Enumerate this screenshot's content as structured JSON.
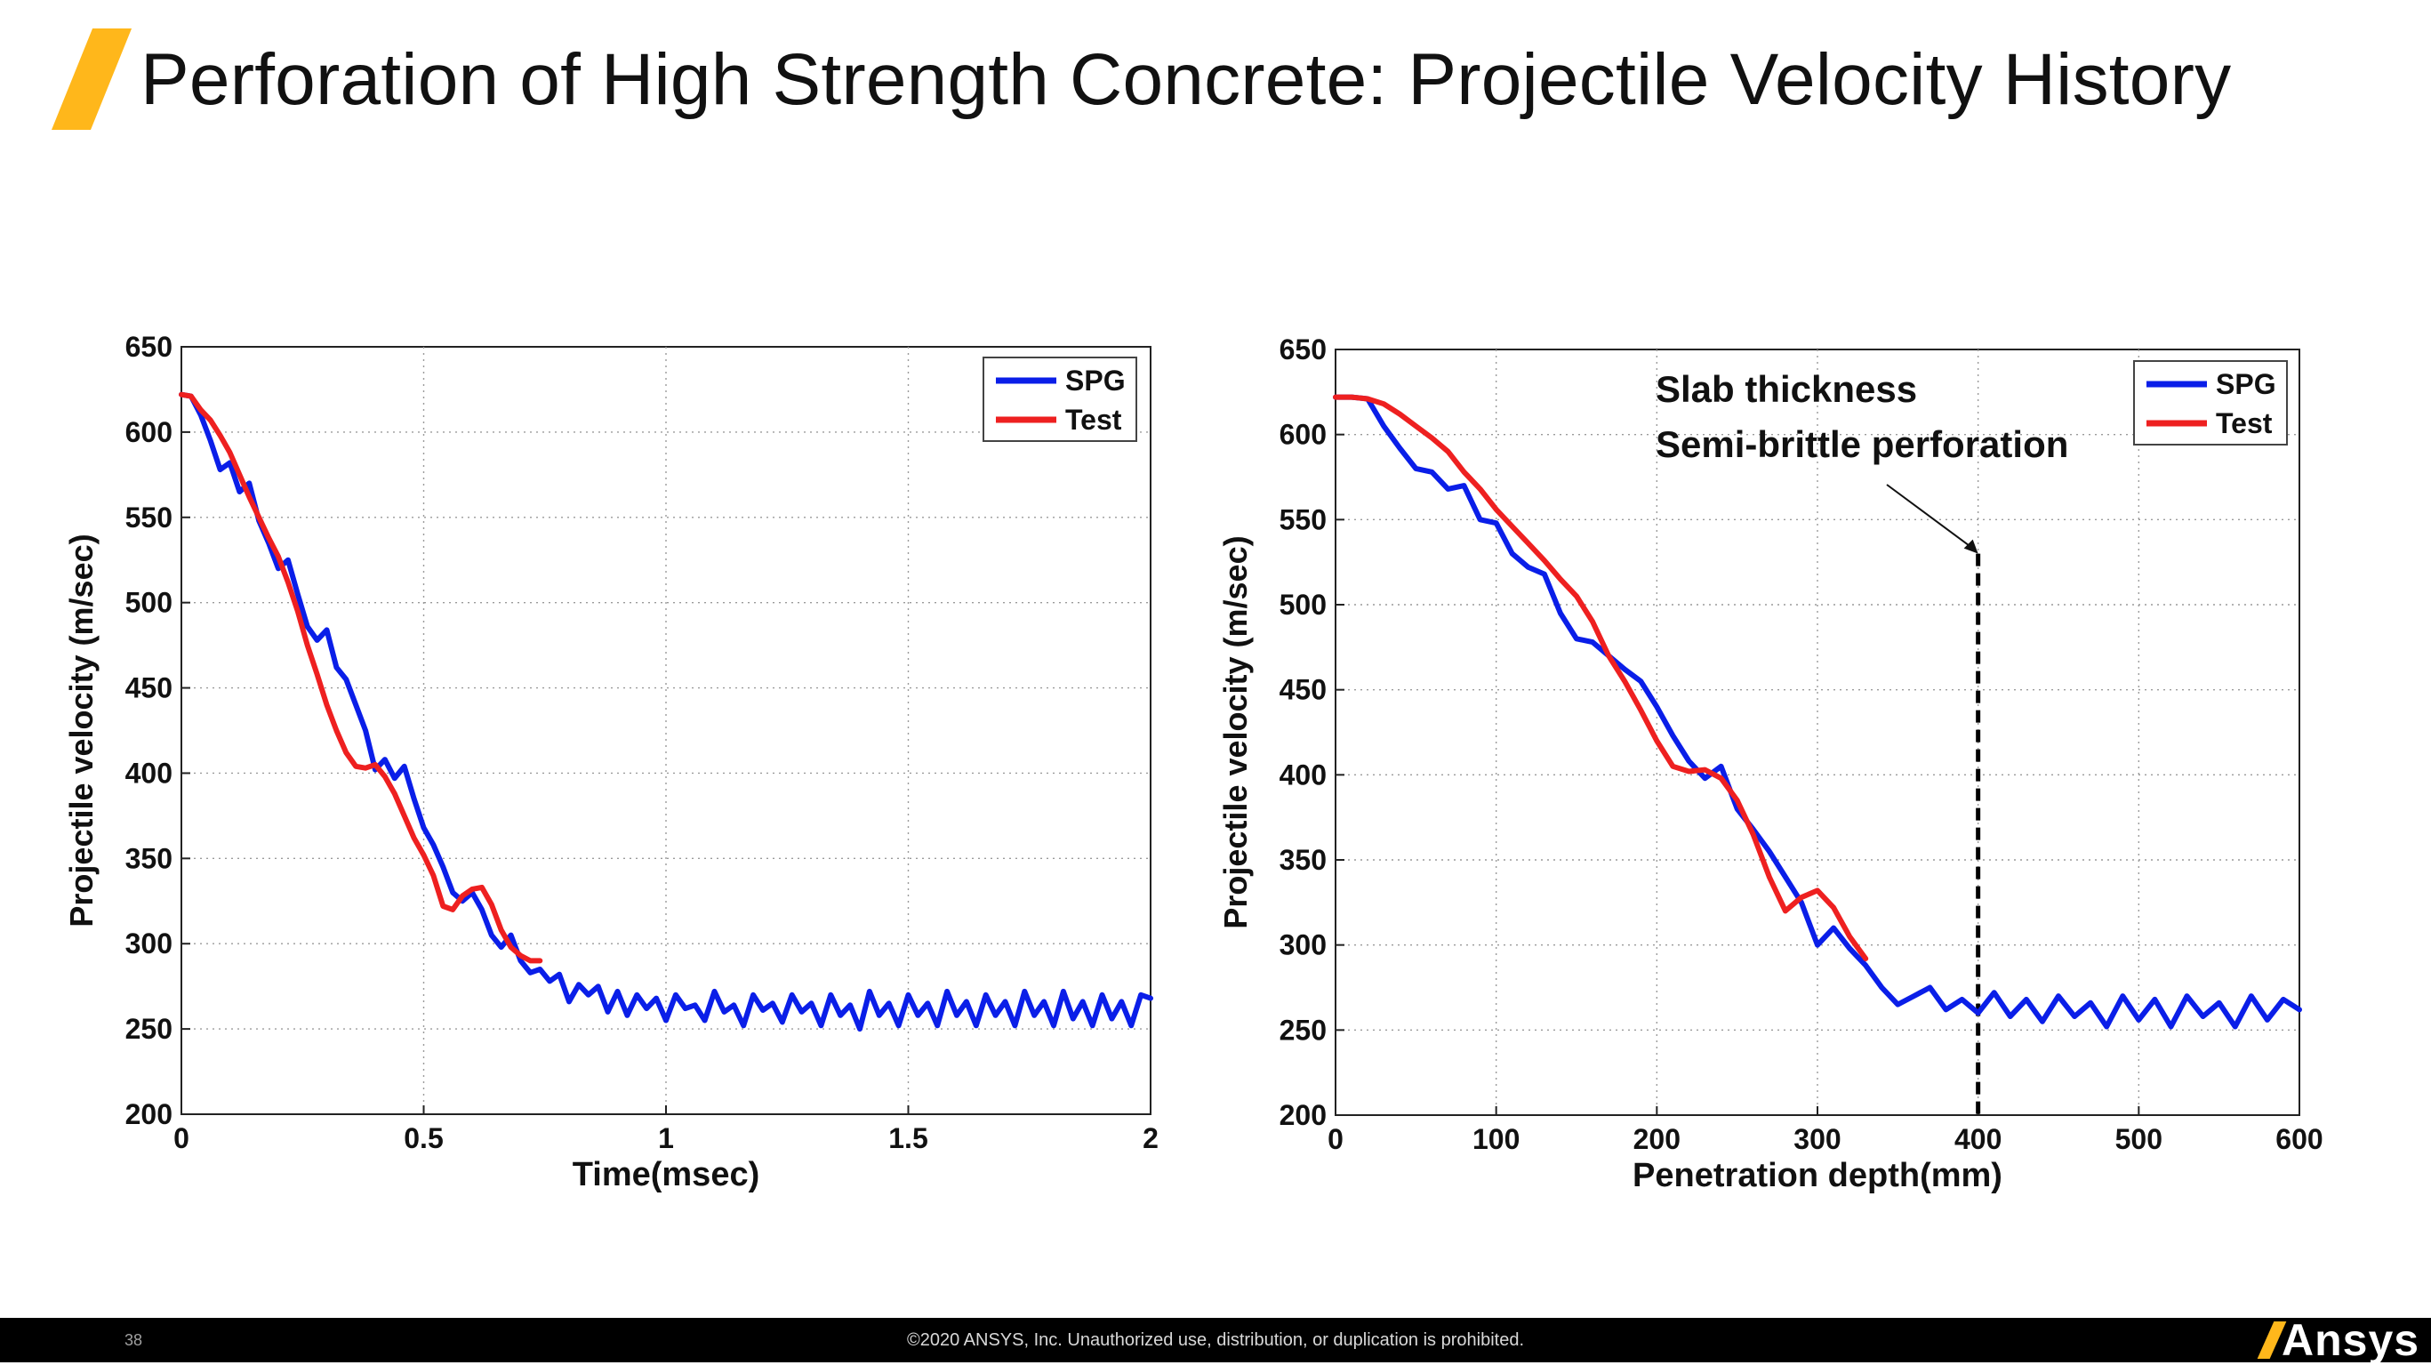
{
  "slide": {
    "title": "Perforation of High Strength Concrete: Projectile Velocity History",
    "page_number": "38",
    "copyright": "©2020 ANSYS, Inc. Unauthorized use, distribution, or duplication is prohibited.",
    "brand": "Ansys"
  },
  "colors": {
    "accent": "#ffb71b",
    "spg": "#0a1ee8",
    "test": "#ee2020"
  },
  "chart_data": [
    {
      "type": "line",
      "title": "",
      "xlabel": "Time(msec)",
      "ylabel": "Projectile velocity (m/sec)",
      "xlim": [
        0,
        2
      ],
      "ylim": [
        200,
        650
      ],
      "xticks": [
        "0",
        "0.5",
        "1",
        "1.5",
        "2"
      ],
      "yticks": [
        "200",
        "250",
        "300",
        "350",
        "400",
        "450",
        "500",
        "550",
        "600",
        "650"
      ],
      "grid": true,
      "legend_position": "top-right",
      "series": [
        {
          "name": "SPG",
          "x": [
            0,
            0.02,
            0.04,
            0.06,
            0.08,
            0.1,
            0.12,
            0.14,
            0.16,
            0.18,
            0.2,
            0.22,
            0.24,
            0.26,
            0.28,
            0.3,
            0.32,
            0.34,
            0.36,
            0.38,
            0.4,
            0.42,
            0.44,
            0.46,
            0.48,
            0.5,
            0.52,
            0.54,
            0.56,
            0.58,
            0.6,
            0.62,
            0.64,
            0.66,
            0.68,
            0.7,
            0.72,
            0.74,
            0.76,
            0.78,
            0.8,
            0.82,
            0.84,
            0.86,
            0.88,
            0.9,
            0.92,
            0.94,
            0.96,
            0.98,
            1.0,
            1.02,
            1.04,
            1.06,
            1.08,
            1.1,
            1.12,
            1.14,
            1.16,
            1.18,
            1.2,
            1.22,
            1.24,
            1.26,
            1.28,
            1.3,
            1.32,
            1.34,
            1.36,
            1.38,
            1.4,
            1.42,
            1.44,
            1.46,
            1.48,
            1.5,
            1.52,
            1.54,
            1.56,
            1.58,
            1.6,
            1.62,
            1.64,
            1.66,
            1.68,
            1.7,
            1.72,
            1.74,
            1.76,
            1.78,
            1.8,
            1.82,
            1.84,
            1.86,
            1.88,
            1.9,
            1.92,
            1.94,
            1.96,
            1.98,
            2.0
          ],
          "y": [
            622,
            621,
            610,
            595,
            578,
            582,
            565,
            570,
            548,
            535,
            520,
            525,
            505,
            486,
            478,
            484,
            462,
            455,
            440,
            425,
            402,
            408,
            397,
            404,
            385,
            368,
            358,
            345,
            330,
            325,
            330,
            320,
            305,
            298,
            305,
            290,
            283,
            285,
            278,
            282,
            266,
            276,
            270,
            275,
            260,
            272,
            258,
            270,
            262,
            268,
            255,
            270,
            262,
            264,
            255,
            272,
            260,
            264,
            252,
            270,
            261,
            265,
            254,
            270,
            260,
            265,
            252,
            270,
            258,
            264,
            250,
            272,
            258,
            265,
            252,
            270,
            258,
            265,
            252,
            272,
            258,
            266,
            252,
            270,
            258,
            266,
            252,
            272,
            258,
            266,
            252,
            272,
            256,
            266,
            252,
            270,
            256,
            266,
            252,
            270,
            268
          ]
        },
        {
          "name": "Test",
          "x": [
            0,
            0.02,
            0.04,
            0.06,
            0.08,
            0.1,
            0.12,
            0.14,
            0.16,
            0.18,
            0.2,
            0.22,
            0.24,
            0.26,
            0.28,
            0.3,
            0.32,
            0.34,
            0.36,
            0.38,
            0.4,
            0.42,
            0.44,
            0.46,
            0.48,
            0.5,
            0.52,
            0.54,
            0.56,
            0.58,
            0.6,
            0.62,
            0.64,
            0.66,
            0.68,
            0.7,
            0.72,
            0.74
          ],
          "y": [
            622,
            621,
            613,
            607,
            598,
            588,
            575,
            562,
            550,
            538,
            527,
            512,
            495,
            475,
            458,
            440,
            425,
            412,
            404,
            403,
            405,
            398,
            388,
            375,
            362,
            352,
            340,
            322,
            320,
            328,
            332,
            333,
            323,
            308,
            298,
            293,
            290,
            290
          ]
        }
      ]
    },
    {
      "type": "line",
      "title": "",
      "xlabel": "Penetration depth(mm)",
      "ylabel": "Projectile velocity (m/sec)",
      "xlim": [
        0,
        600
      ],
      "ylim": [
        200,
        650
      ],
      "xticks": [
        "0",
        "100",
        "200",
        "300",
        "400",
        "500",
        "600"
      ],
      "yticks": [
        "200",
        "250",
        "300",
        "350",
        "400",
        "450",
        "500",
        "550",
        "600",
        "650"
      ],
      "grid": true,
      "legend_position": "top-right",
      "annotation": {
        "lines": [
          "Slab thickness",
          "Semi-brittle perforation"
        ],
        "x": 400,
        "ymax": 530
      },
      "series": [
        {
          "name": "SPG",
          "x": [
            0,
            10,
            20,
            30,
            40,
            50,
            60,
            70,
            80,
            90,
            100,
            110,
            120,
            130,
            140,
            150,
            160,
            170,
            180,
            190,
            200,
            210,
            220,
            230,
            240,
            250,
            260,
            270,
            280,
            290,
            300,
            310,
            320,
            330,
            340,
            350,
            360,
            370,
            380,
            390,
            400,
            410,
            420,
            430,
            440,
            450,
            460,
            470,
            480,
            490,
            500,
            510,
            520,
            530,
            540,
            550,
            560,
            570,
            580,
            590,
            600
          ],
          "y": [
            622,
            622,
            621,
            605,
            592,
            580,
            578,
            568,
            570,
            550,
            548,
            530,
            522,
            518,
            495,
            480,
            478,
            470,
            462,
            455,
            440,
            423,
            408,
            398,
            405,
            380,
            368,
            355,
            340,
            325,
            300,
            310,
            298,
            288,
            275,
            265,
            270,
            275,
            262,
            268,
            260,
            272,
            258,
            268,
            255,
            270,
            258,
            266,
            252,
            270,
            256,
            268,
            252,
            270,
            258,
            266,
            252,
            270,
            256,
            268,
            262
          ]
        },
        {
          "name": "Test",
          "x": [
            0,
            10,
            20,
            30,
            40,
            50,
            60,
            70,
            80,
            90,
            100,
            110,
            120,
            130,
            140,
            150,
            160,
            170,
            180,
            190,
            200,
            210,
            220,
            230,
            240,
            250,
            260,
            270,
            280,
            290,
            300,
            310,
            320,
            330
          ],
          "y": [
            622,
            622,
            621,
            618,
            612,
            605,
            598,
            590,
            578,
            568,
            556,
            546,
            536,
            526,
            515,
            505,
            490,
            470,
            455,
            438,
            420,
            405,
            402,
            403,
            398,
            385,
            365,
            340,
            320,
            328,
            332,
            322,
            305,
            292
          ]
        }
      ]
    }
  ]
}
